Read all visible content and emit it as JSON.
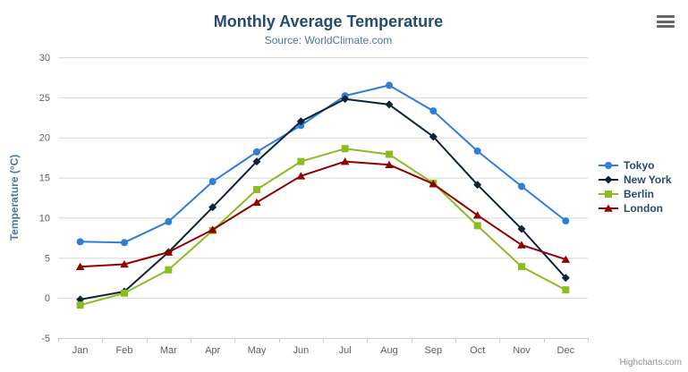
{
  "chart_data": {
    "type": "line",
    "title": "Monthly Average Temperature",
    "subtitle": "Source: WorldClimate.com",
    "xlabel": "",
    "ylabel": "Temperature (°C)",
    "categories": [
      "Jan",
      "Feb",
      "Mar",
      "Apr",
      "May",
      "Jun",
      "Jul",
      "Aug",
      "Sep",
      "Oct",
      "Nov",
      "Dec"
    ],
    "ylim": [
      -5,
      30
    ],
    "ytick_interval": 5,
    "yticks": [
      -5,
      0,
      5,
      10,
      15,
      20,
      25,
      30
    ],
    "grid": true,
    "legend_position": "right",
    "series": [
      {
        "name": "Tokyo",
        "color": "#2f7ed8",
        "marker": "circle",
        "values": [
          7.0,
          6.9,
          9.5,
          14.5,
          18.2,
          21.5,
          25.2,
          26.5,
          23.3,
          18.3,
          13.9,
          9.6
        ]
      },
      {
        "name": "New York",
        "color": "#0d233a",
        "marker": "diamond",
        "values": [
          -0.2,
          0.8,
          5.7,
          11.3,
          17.0,
          22.0,
          24.8,
          24.1,
          20.1,
          14.1,
          8.6,
          2.5
        ]
      },
      {
        "name": "Berlin",
        "color": "#8bbc21",
        "marker": "square",
        "values": [
          -0.9,
          0.6,
          3.5,
          8.4,
          13.5,
          17.0,
          18.6,
          17.9,
          14.3,
          9.0,
          3.9,
          1.0
        ]
      },
      {
        "name": "London",
        "color": "#910000",
        "marker": "triangle",
        "values": [
          3.9,
          4.2,
          5.7,
          8.5,
          11.9,
          15.2,
          17.0,
          16.6,
          14.2,
          10.3,
          6.6,
          4.8
        ]
      }
    ],
    "colors": {
      "grid_line": "#d8d8d8",
      "axis_line": "#c0d0e0",
      "axis_label": "#606060",
      "title": "#274b6d",
      "subtitle": "#4d759e",
      "axis_title": "#4d759e",
      "legend_text": "#274b6d"
    },
    "credit": "Highcharts.com"
  }
}
